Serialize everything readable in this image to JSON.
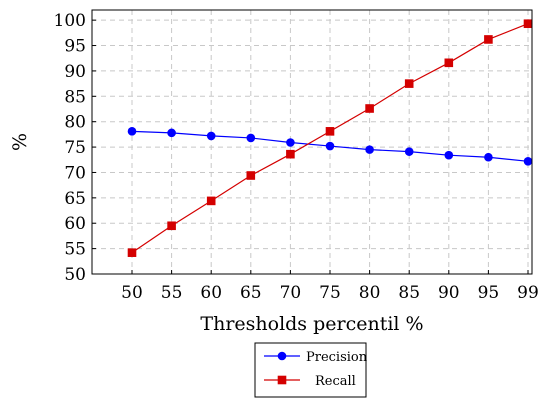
{
  "chart_data": {
    "type": "line",
    "title": "",
    "xlabel": "Thresholds percentil %",
    "ylabel": "%",
    "categories": [
      "50",
      "55",
      "60",
      "65",
      "70",
      "75",
      "80",
      "85",
      "90",
      "95",
      "99"
    ],
    "y_ticks": [
      50,
      55,
      60,
      65,
      70,
      75,
      80,
      85,
      90,
      95,
      100
    ],
    "ylim": [
      50,
      102
    ],
    "grid": true,
    "legend_position": "bottom-center",
    "series": [
      {
        "name": "Precision",
        "color": "#0000ff",
        "marker": "circle",
        "values": [
          78.1,
          77.8,
          77.2,
          76.8,
          75.9,
          75.2,
          74.5,
          74.1,
          73.4,
          73.0,
          72.2
        ]
      },
      {
        "name": "Recall",
        "color": "#d40000",
        "marker": "square",
        "values": [
          54.2,
          59.5,
          64.4,
          69.4,
          73.6,
          78.1,
          82.6,
          87.5,
          91.6,
          96.2,
          99.3
        ]
      }
    ]
  }
}
